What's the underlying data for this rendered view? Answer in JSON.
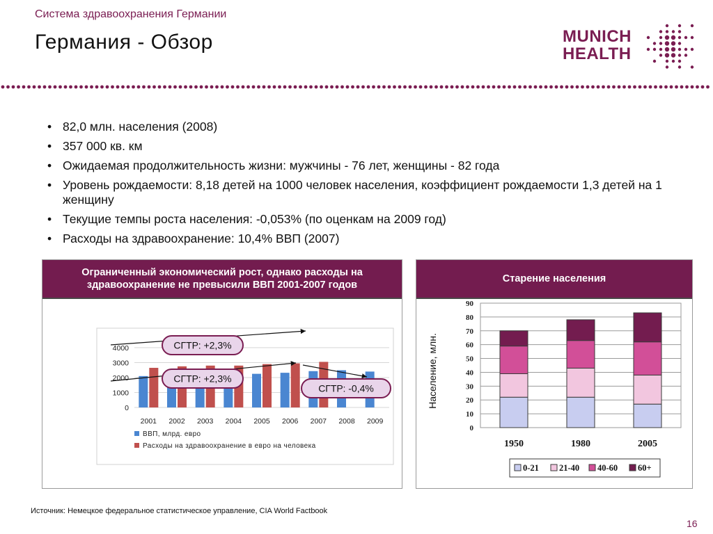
{
  "header": {
    "supertitle": "Система здравоохранения Германии",
    "title": "Германия - Обзор",
    "logo_line1": "MUNICH",
    "logo_line2": "HEALTH",
    "accent_color": "#7a1d52"
  },
  "bullets": [
    "82,0 млн. населения (2008)",
    "357 000 кв. км",
    "Ожидаемая продолжительность жизни: мужчины - 76 лет, женщины - 82 года",
    "Уровень рождаемости: 8,18 детей на 1000 человек населения, коэффициент рождаемости 1,3 детей на 1 женщину",
    "Текущие темпы роста населения: -0,053% (по оценкам на 2009 год)",
    "Расходы на здравоохранение: 10,4% ВВП (2007)"
  ],
  "left_panel": {
    "header": "Ограниченный экономический рост, однако расходы на здравоохранение не превысили ВВП 2001-2007 годов"
  },
  "right_panel": {
    "header": "Старение населения"
  },
  "chart_data": [
    {
      "type": "bar",
      "categories": [
        "2001",
        "2002",
        "2003",
        "2004",
        "2005",
        "2006",
        "2007",
        "2008",
        "2009"
      ],
      "series": [
        {
          "name": "ВВП, млрд. евро",
          "color": "#4a86d1",
          "values": [
            2100,
            2150,
            2150,
            2200,
            2250,
            2320,
            2430,
            2490,
            2400
          ]
        },
        {
          "name": "Расходы на здравоохранение в евро на человека",
          "color": "#c0504d",
          "values": [
            2650,
            2750,
            2800,
            2800,
            2900,
            2950,
            3050,
            null,
            null
          ]
        }
      ],
      "yticks": [
        0,
        1000,
        2000,
        3000,
        4000
      ],
      "ylim": [
        0,
        4000
      ],
      "legend": "bottom",
      "annotations": [
        "СГТР: +2,3%",
        "СГТР: +2,3%",
        "СГТР: -0,4%"
      ]
    },
    {
      "type": "bar",
      "stacked": true,
      "categories": [
        "1950",
        "1980",
        "2005"
      ],
      "ylabel": "Население, млн.",
      "ylim": [
        0,
        90
      ],
      "yticks": [
        0,
        10,
        20,
        30,
        40,
        50,
        60,
        70,
        80,
        90
      ],
      "series": [
        {
          "name": "0-21",
          "color": "#c8cdf0",
          "values": [
            22,
            22,
            17
          ]
        },
        {
          "name": "21-40",
          "color": "#f2c6df",
          "values": [
            17,
            21,
            21
          ]
        },
        {
          "name": "40-60",
          "color": "#d24f98",
          "values": [
            20,
            20,
            24
          ]
        },
        {
          "name": "60+",
          "color": "#731c4f",
          "values": [
            11,
            15,
            21
          ]
        }
      ],
      "legend": "bottom"
    }
  ],
  "footer": {
    "source": "Источник: Немецкое федеральное статистическое управление, CIA World Factbook",
    "page_number": "16"
  }
}
